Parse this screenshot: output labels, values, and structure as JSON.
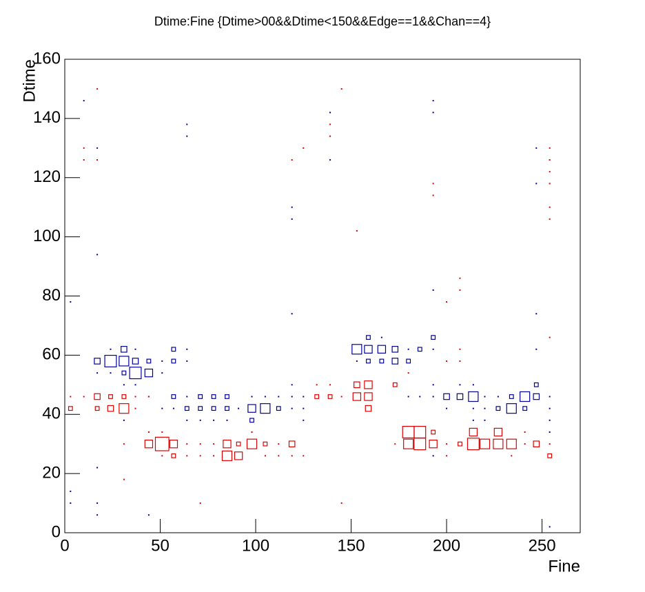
{
  "chart_data": {
    "type": "box2d",
    "title": "Dtime:Fine {Dtime>00&&Dtime<150&&Edge==1&&Chan==4}",
    "x_label": "Fine",
    "y_label": "Dtime",
    "xlim": [
      0,
      270
    ],
    "ylim": [
      0,
      160
    ],
    "xticks": [
      0,
      50,
      100,
      150,
      200,
      250
    ],
    "yticks": [
      0,
      20,
      40,
      60,
      80,
      100,
      120,
      140,
      160
    ],
    "series": [
      {
        "color": "#000099",
        "x": [
          3,
          3,
          3,
          10,
          17,
          17,
          17,
          17,
          17,
          17,
          17,
          24,
          24,
          24,
          31,
          31,
          31,
          31,
          31,
          37,
          37,
          37,
          37,
          44,
          44,
          44,
          44,
          51,
          51,
          51,
          57,
          57,
          57,
          57,
          64,
          64,
          64,
          64,
          64,
          64,
          64,
          71,
          71,
          71,
          78,
          78,
          78,
          85,
          85,
          85,
          91,
          98,
          98,
          98,
          105,
          105,
          112,
          112,
          119,
          119,
          119,
          119,
          119,
          119,
          125,
          125,
          125,
          139,
          139,
          153,
          153,
          159,
          159,
          159,
          166,
          166,
          166,
          173,
          173,
          180,
          180,
          180,
          186,
          186,
          193,
          193,
          193,
          193,
          193,
          193,
          193,
          193,
          200,
          200,
          207,
          207,
          214,
          214,
          214,
          214,
          220,
          220,
          220,
          227,
          227,
          234,
          234,
          241,
          241,
          247,
          247,
          247,
          247,
          247,
          247,
          254,
          254,
          254,
          254,
          254
        ],
        "values": [
          78,
          14,
          10,
          146,
          130,
          94,
          22,
          10,
          6,
          58,
          54,
          62,
          58,
          54,
          62,
          58,
          54,
          50,
          38,
          62,
          58,
          54,
          50,
          58,
          54,
          46,
          6,
          58,
          54,
          42,
          62,
          58,
          46,
          42,
          138,
          134,
          62,
          58,
          46,
          42,
          38,
          46,
          42,
          38,
          46,
          42,
          38,
          46,
          42,
          38,
          42,
          46,
          42,
          38,
          42,
          46,
          42,
          46,
          110,
          106,
          74,
          50,
          46,
          42,
          46,
          42,
          38,
          142,
          126,
          62,
          58,
          66,
          62,
          58,
          66,
          62,
          58,
          62,
          58,
          62,
          58,
          46,
          62,
          46,
          146,
          142,
          82,
          66,
          62,
          50,
          46,
          26,
          46,
          42,
          50,
          46,
          50,
          46,
          42,
          38,
          46,
          42,
          38,
          46,
          42,
          46,
          42,
          46,
          42,
          130,
          118,
          74,
          62,
          50,
          46,
          46,
          42,
          38,
          34,
          2
        ],
        "counts": [
          1,
          1,
          1,
          1,
          1,
          1,
          1,
          1,
          1,
          3,
          1,
          1,
          6,
          1,
          3,
          5,
          2,
          1,
          1,
          1,
          3,
          6,
          1,
          2,
          4,
          1,
          1,
          1,
          1,
          1,
          2,
          2,
          2,
          1,
          1,
          1,
          1,
          1,
          1,
          2,
          1,
          2,
          2,
          1,
          2,
          2,
          1,
          2,
          2,
          1,
          1,
          1,
          4,
          2,
          5,
          1,
          2,
          1,
          1,
          1,
          1,
          1,
          1,
          1,
          1,
          1,
          1,
          1,
          1,
          5,
          1,
          2,
          4,
          2,
          1,
          4,
          2,
          3,
          3,
          1,
          2,
          1,
          2,
          1,
          1,
          1,
          1,
          2,
          1,
          1,
          1,
          1,
          3,
          1,
          1,
          3,
          1,
          5,
          1,
          1,
          1,
          1,
          1,
          1,
          2,
          2,
          5,
          5,
          2,
          1,
          1,
          1,
          1,
          2,
          3,
          1,
          1,
          1,
          1,
          1
        ]
      },
      {
        "color": "#dd0000",
        "x": [
          3,
          3,
          10,
          10,
          10,
          17,
          17,
          17,
          17,
          24,
          24,
          31,
          31,
          31,
          31,
          37,
          37,
          44,
          44,
          44,
          51,
          51,
          51,
          57,
          57,
          64,
          64,
          71,
          71,
          71,
          78,
          78,
          85,
          85,
          91,
          91,
          98,
          98,
          105,
          105,
          112,
          112,
          119,
          119,
          119,
          125,
          125,
          132,
          132,
          139,
          139,
          139,
          139,
          145,
          145,
          145,
          153,
          153,
          153,
          159,
          159,
          159,
          173,
          173,
          180,
          180,
          180,
          186,
          186,
          193,
          193,
          193,
          193,
          200,
          200,
          200,
          200,
          207,
          207,
          207,
          207,
          207,
          214,
          214,
          220,
          227,
          227,
          234,
          234,
          241,
          241,
          247,
          254,
          254,
          254,
          254,
          254,
          254,
          254,
          254,
          254
        ],
        "values": [
          46,
          42,
          130,
          126,
          46,
          150,
          126,
          46,
          42,
          46,
          42,
          46,
          42,
          30,
          18,
          46,
          42,
          46,
          34,
          30,
          34,
          30,
          26,
          30,
          26,
          30,
          26,
          30,
          26,
          10,
          30,
          26,
          30,
          26,
          30,
          26,
          34,
          30,
          30,
          26,
          30,
          26,
          126,
          30,
          26,
          130,
          26,
          50,
          46,
          138,
          134,
          50,
          46,
          150,
          46,
          10,
          102,
          50,
          46,
          50,
          46,
          42,
          50,
          30,
          54,
          34,
          30,
          34,
          30,
          118,
          114,
          34,
          30,
          78,
          58,
          30,
          26,
          86,
          82,
          62,
          58,
          30,
          34,
          30,
          30,
          34,
          30,
          30,
          26,
          34,
          30,
          30,
          130,
          126,
          122,
          118,
          110,
          106,
          66,
          30,
          26
        ],
        "counts": [
          1,
          2,
          1,
          1,
          1,
          1,
          1,
          3,
          2,
          2,
          3,
          2,
          5,
          1,
          1,
          1,
          1,
          1,
          1,
          4,
          1,
          7,
          1,
          4,
          2,
          1,
          1,
          1,
          1,
          1,
          1,
          1,
          4,
          5,
          2,
          4,
          1,
          5,
          2,
          1,
          1,
          1,
          1,
          3,
          1,
          1,
          1,
          1,
          2,
          1,
          1,
          1,
          2,
          1,
          1,
          1,
          1,
          3,
          4,
          4,
          4,
          3,
          2,
          1,
          1,
          6,
          5,
          6,
          6,
          1,
          1,
          2,
          4,
          1,
          1,
          1,
          1,
          1,
          1,
          1,
          1,
          2,
          4,
          6,
          5,
          4,
          5,
          5,
          1,
          1,
          1,
          3,
          1,
          1,
          1,
          1,
          1,
          1,
          1,
          1,
          2
        ]
      }
    ]
  }
}
